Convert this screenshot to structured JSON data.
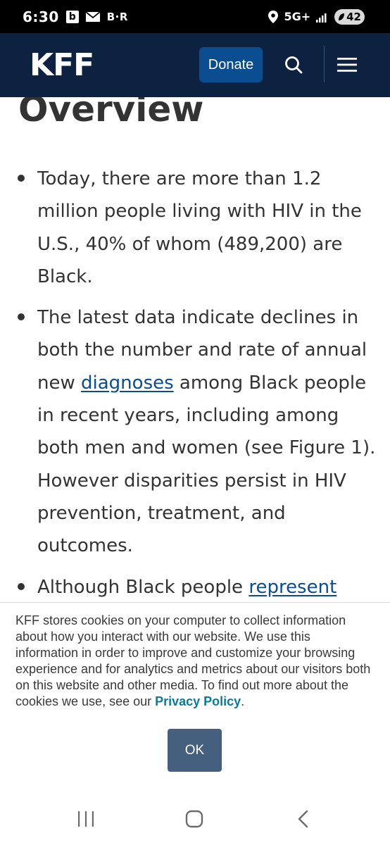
{
  "status_bar": {
    "time": "6:30",
    "notif_b": "b",
    "notif_br": "B·R",
    "network": "5G+",
    "battery": "42"
  },
  "header": {
    "logo": "KFF",
    "donate_label": "Donate"
  },
  "article": {
    "heading": "Overview",
    "bullet1": "Today, there are more than 1.2 million people living with HIV in the U.S., 40% of whom (489,200) are Black.",
    "bullet2": {
      "before": "The latest data indicate declines in both the number and rate of annual new ",
      "link": "diagnoses",
      "after": " among Black people in recent years, including among both men and women (see Figure 1). However disparities persist in HIV prevention, treatment, and outcomes."
    },
    "bullet3": {
      "before": "Although Black people ",
      "link": "represent"
    }
  },
  "cookie_banner": {
    "text": "KFF stores cookies on your computer to collect information about how you interact with our website. We use this information in order to improve and customize your browsing experience and for analytics and metrics about our visitors both on this website and other media. To find out more about the cookies we use, see our ",
    "link": "Privacy Policy",
    "end": ".",
    "ok_label": "OK"
  }
}
